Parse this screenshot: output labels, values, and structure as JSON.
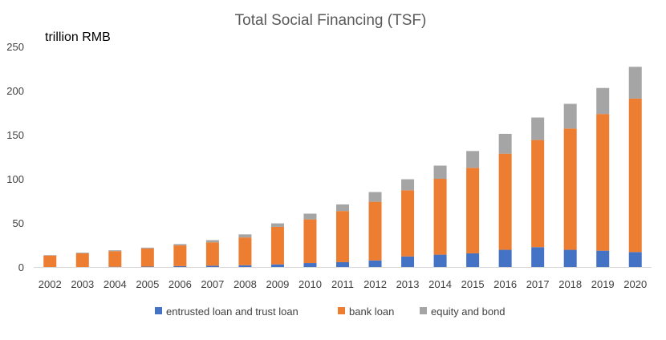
{
  "chart_data": {
    "type": "bar",
    "stacked": true,
    "title": "Total Social Financing (TSF)",
    "unit_label": "trillion RMB",
    "xlabel": "",
    "ylabel": "",
    "categories": [
      "2002",
      "2003",
      "2004",
      "2005",
      "2006",
      "2007",
      "2008",
      "2009",
      "2010",
      "2011",
      "2012",
      "2013",
      "2014",
      "2015",
      "2016",
      "2017",
      "2018",
      "2019",
      "2020"
    ],
    "series": [
      {
        "name": "entrusted loan and trust loan",
        "color": "#4472C4",
        "values": [
          0,
          0,
          0.3,
          0.5,
          1.0,
          1.5,
          2.0,
          3.0,
          4.5,
          5.5,
          7.5,
          12,
          14,
          15.5,
          19.5,
          22.5,
          19.5,
          18.5,
          17
        ]
      },
      {
        "name": "bank loan",
        "color": "#ED7D31",
        "values": [
          13,
          15.5,
          17.7,
          20.5,
          23.5,
          26.5,
          31.5,
          42.5,
          49.5,
          58,
          66.5,
          75,
          86,
          97,
          109,
          121.5,
          137.5,
          155,
          174
        ]
      },
      {
        "name": "equity and bond",
        "color": "#A5A5A5",
        "values": [
          0.5,
          0.8,
          1,
          1,
          1.5,
          2.5,
          3.5,
          4,
          6.5,
          7.5,
          11,
          12.5,
          15,
          19,
          22.5,
          25.5,
          28,
          29.5,
          36
        ]
      }
    ],
    "yticks": [
      0,
      50,
      100,
      150,
      200,
      250
    ],
    "ylim": [
      0,
      250
    ],
    "grid": false,
    "legend_position": "bottom"
  }
}
